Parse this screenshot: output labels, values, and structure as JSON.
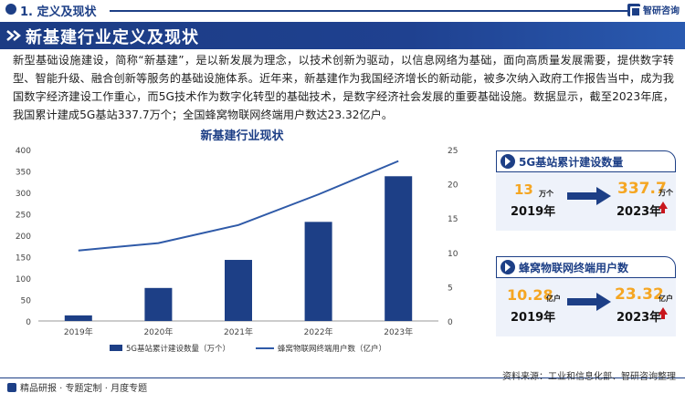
{
  "header": {
    "section_crumb": "1. 定义及现状",
    "brand_name": "智研咨询",
    "banner_title": "新基建行业定义及现状"
  },
  "intro_paragraph": "新型基础设施建设，简称“新基建”，是以新发展为理念，以技术创新为驱动，以信息网络为基础，面向高质量发展需要，提供数字转型、智能升级、融合创新等服务的基础设施体系。近年来，新基建作为我国经济增长的新动能，被多次纳入政府工作报告当中，成为我国数字经济建设工作重心，而5G技术作为数字化转型的基础技术，是数字经济社会发展的重要基础设施。数据显示，截至2023年底，我国累计建成5G基站337.7万个；全国蜂窝物联网终端用户数达23.32亿户。",
  "chart_data": {
    "type": "bar",
    "title": "新基建行业现状",
    "categories": [
      "2019年",
      "2020年",
      "2021年",
      "2022年",
      "2023年"
    ],
    "series": [
      {
        "name": "5G基站累计建设数量（万个）",
        "type": "bar",
        "axis": "left",
        "color": "#1d3f86",
        "values": [
          13,
          77,
          142.5,
          231.2,
          337.7
        ]
      },
      {
        "name": "蜂窝物联网终端用户数（亿户）",
        "type": "line",
        "axis": "right",
        "color": "#2f5aa8",
        "values": [
          10.28,
          11.36,
          13.99,
          18.45,
          23.32
        ]
      }
    ],
    "y_left": {
      "min": 0,
      "max": 400,
      "ticks": [
        0,
        50,
        100,
        150,
        200,
        250,
        300,
        350,
        400
      ]
    },
    "y_right": {
      "min": 0,
      "max": 25,
      "ticks": [
        0,
        5,
        10,
        15,
        20,
        25
      ]
    },
    "legend_position": "bottom",
    "grid": false
  },
  "cards": [
    {
      "title": "5G基站累计建设数量",
      "start_value": "13",
      "start_unit": "万个",
      "start_year": "2019年",
      "end_value": "337.7",
      "end_unit": "万个",
      "end_year": "2023年"
    },
    {
      "title": "蜂窝物联网终端用户数",
      "start_value": "10.28",
      "start_unit": "亿户",
      "start_year": "2019年",
      "end_value": "23.32",
      "end_unit": "亿户",
      "end_year": "2023年"
    }
  ],
  "footer": {
    "left_text": "精品研报 · 专题定制 · 月度专题",
    "right_text": "资料来源：工业和信息化部、智研咨询整理"
  },
  "colors": {
    "brand": "#1d3f86",
    "highlight": "#f5a623",
    "up_arrow": "#c8161d"
  }
}
